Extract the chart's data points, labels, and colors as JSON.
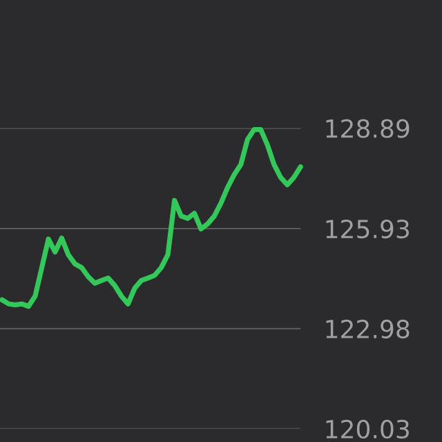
{
  "chart_data": {
    "type": "line",
    "categories": [
      null,
      null,
      null,
      null,
      null,
      null,
      null,
      null,
      null,
      null,
      null,
      null,
      null,
      null,
      null,
      null,
      null,
      null,
      null,
      null,
      null,
      null,
      null,
      null,
      null,
      null,
      null,
      null,
      null,
      null,
      null,
      null,
      null,
      null,
      null,
      null,
      null,
      null,
      null,
      null,
      null,
      null,
      null,
      null,
      null,
      null
    ],
    "series": [
      {
        "color": "#34c759",
        "values": [
          123.83,
          123.71,
          123.68,
          123.71,
          123.64,
          123.94,
          124.78,
          125.62,
          125.24,
          125.65,
          125.16,
          124.89,
          124.78,
          124.51,
          124.32,
          124.4,
          124.47,
          124.25,
          123.94,
          123.71,
          124.17,
          124.4,
          124.47,
          124.55,
          124.78,
          125.16,
          126.76,
          126.3,
          126.23,
          126.38,
          125.92,
          126.07,
          126.3,
          126.68,
          127.14,
          127.52,
          127.82,
          128.55,
          128.85,
          128.85,
          128.4,
          127.82,
          127.44,
          127.22,
          127.44,
          127.75
        ]
      }
    ],
    "ylim": [
      120.03,
      128.89
    ],
    "yticks": [
      120.03,
      122.98,
      125.93,
      128.89
    ],
    "grid": "y",
    "legend": false,
    "marker": "none",
    "line_style": "solid",
    "tick_labels": "y"
  }
}
